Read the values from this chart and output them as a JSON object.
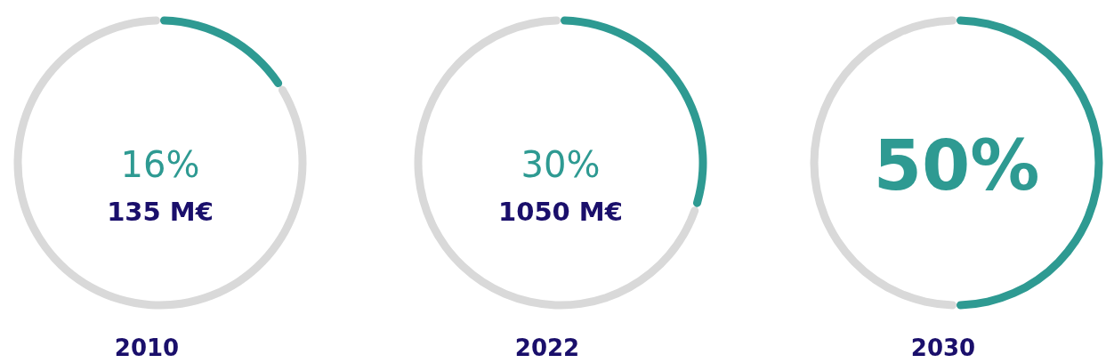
{
  "chart_data": [
    {
      "type": "donut",
      "title": "2010",
      "categories": [
        null,
        null
      ],
      "values": [
        16,
        84
      ],
      "colors": [
        "#2e9a92",
        "#d9d9d9"
      ],
      "annotations": [
        "16%",
        "135 M€"
      ]
    },
    {
      "type": "donut",
      "title": "2022",
      "categories": [
        null,
        null
      ],
      "values": [
        30,
        70
      ],
      "colors": [
        "#2e9a92",
        "#d9d9d9"
      ],
      "annotations": [
        "30%",
        "1050 M€"
      ]
    },
    {
      "type": "donut",
      "title": "2030",
      "categories": [
        null,
        null
      ],
      "values": [
        50,
        50
      ],
      "colors": [
        "#2e9a92",
        "#d9d9d9"
      ],
      "annotations": [
        "50%"
      ]
    }
  ]
}
